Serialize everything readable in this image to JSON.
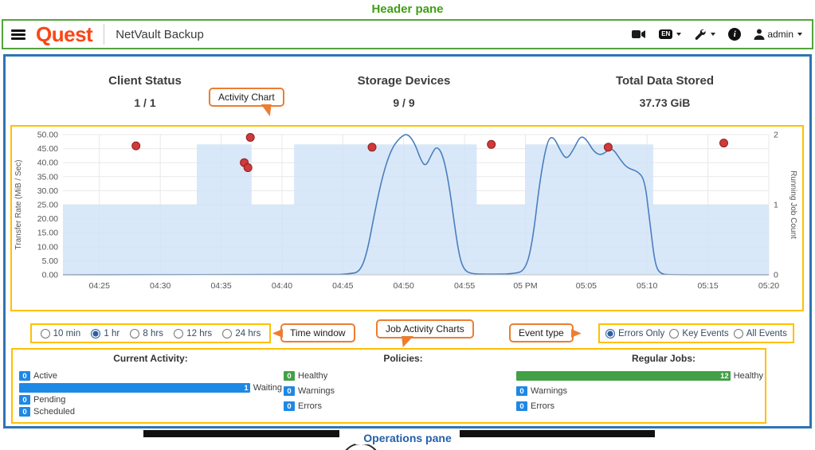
{
  "annotations": {
    "header_pane_label": "Header pane",
    "operations_pane_label": "Operations pane",
    "callouts": {
      "activity_chart": "Activity Chart",
      "time_window": "Time window",
      "job_activity_charts": "Job Activity Charts",
      "event_type": "Event type"
    },
    "colors": {
      "green_border": "#54a33c",
      "blue_border": "#2f74b5",
      "gold_border": "#ffc000",
      "orange_callout": "#ed7d31"
    }
  },
  "header": {
    "logo_text": "Quest",
    "logo_color": "#fa4616",
    "app_title": "NetVault Backup",
    "language_label": "EN",
    "user_label": "admin",
    "icons": [
      "menu-icon",
      "video-camera-icon",
      "language-bubble-icon",
      "tools-icon",
      "info-icon",
      "user-icon"
    ]
  },
  "stats": {
    "items": [
      {
        "title": "Client Status",
        "value": "1 / 1"
      },
      {
        "title": "Storage Devices",
        "value": "9 / 9"
      },
      {
        "title": "Total Data Stored",
        "value": "37.73 GiB"
      }
    ]
  },
  "controls": {
    "time_window": {
      "options": [
        "10 min",
        "1 hr",
        "8 hrs",
        "12 hrs",
        "24 hrs"
      ],
      "selected": "1 hr"
    },
    "event_type": {
      "options": [
        "Errors Only",
        "Key Events",
        "All Events"
      ],
      "selected": "Errors Only"
    }
  },
  "chart_data": {
    "type": "line",
    "title": "Activity Chart",
    "x_ticks": [
      "04:25",
      "04:30",
      "04:35",
      "04:40",
      "04:45",
      "04:50",
      "04:55",
      "05 PM",
      "05:05",
      "05:10",
      "05:15",
      "05:20"
    ],
    "x_tick_minutes": [
      25,
      30,
      35,
      40,
      45,
      50,
      55,
      60,
      65,
      70,
      75,
      80
    ],
    "x_range": [
      22,
      80
    ],
    "y_left_label": "Transfer Rate (MiB / Sec)",
    "y_left_range": [
      0,
      50
    ],
    "y_left_ticks": [
      "0.00",
      "5.00",
      "10.00",
      "15.00",
      "20.00",
      "25.00",
      "30.00",
      "35.00",
      "40.00",
      "45.00",
      "50.00"
    ],
    "y_right_label": "Running Job Count",
    "y_right_range": [
      0,
      2
    ],
    "y_right_ticks": [
      "0",
      "1",
      "2"
    ],
    "grid": true,
    "legend": "none",
    "series": [
      {
        "name": "Transfer Rate",
        "kind": "line",
        "color": "#4a7fbf",
        "points": [
          [
            22,
            0
          ],
          [
            44,
            0
          ],
          [
            45.5,
            0.3
          ],
          [
            46.4,
            1
          ],
          [
            47,
            8
          ],
          [
            47.6,
            22
          ],
          [
            48.3,
            36
          ],
          [
            49,
            45
          ],
          [
            49.7,
            49
          ],
          [
            50.3,
            50.5
          ],
          [
            50.9,
            47
          ],
          [
            51.4,
            41
          ],
          [
            51.8,
            38.5
          ],
          [
            52.3,
            43
          ],
          [
            52.7,
            46
          ],
          [
            53.2,
            43
          ],
          [
            53.7,
            33
          ],
          [
            54.2,
            17
          ],
          [
            54.6,
            6
          ],
          [
            55,
            1.5
          ],
          [
            55.6,
            0.3
          ],
          [
            57,
            0.2
          ],
          [
            59,
            0.3
          ],
          [
            60,
            1.5
          ],
          [
            60.6,
            12
          ],
          [
            61.2,
            34
          ],
          [
            61.8,
            48
          ],
          [
            62.3,
            49.5
          ],
          [
            62.9,
            44
          ],
          [
            63.4,
            41
          ],
          [
            64,
            45
          ],
          [
            64.5,
            49.5
          ],
          [
            65,
            48.5
          ],
          [
            65.6,
            44
          ],
          [
            66.2,
            42.5
          ],
          [
            66.8,
            44.5
          ],
          [
            67.2,
            45
          ],
          [
            67.8,
            41
          ],
          [
            68.4,
            38
          ],
          [
            69.2,
            37
          ],
          [
            69.8,
            34
          ],
          [
            70.2,
            20
          ],
          [
            70.6,
            5
          ],
          [
            71,
            0.3
          ],
          [
            72,
            0
          ],
          [
            80,
            0
          ]
        ]
      },
      {
        "name": "Running Job Count",
        "kind": "stepped-area",
        "color": "#cfe2f6",
        "segments": [
          [
            22,
            33,
            1
          ],
          [
            33,
            37.5,
            2
          ],
          [
            37.5,
            41,
            1
          ],
          [
            41,
            56,
            2
          ],
          [
            56,
            60,
            1
          ],
          [
            60,
            70.5,
            2
          ],
          [
            70.5,
            80,
            1
          ]
        ]
      },
      {
        "name": "Error Events",
        "kind": "scatter",
        "color": "#cf3a3a",
        "points": [
          [
            28,
            46
          ],
          [
            36.9,
            40
          ],
          [
            37.2,
            38.2
          ],
          [
            37.4,
            49
          ],
          [
            47.4,
            45.5
          ],
          [
            57.2,
            46.5
          ],
          [
            66.8,
            45.5
          ],
          [
            76.3,
            47
          ]
        ]
      }
    ]
  },
  "activity_summary": {
    "groups": [
      {
        "title": "Current Activity:",
        "rows": [
          {
            "label": "Active",
            "value": 0,
            "color": "#1e88e5"
          },
          {
            "label": "Waiting",
            "value": 1,
            "color": "#1e88e5"
          },
          {
            "label": "Pending",
            "value": 0,
            "color": "#1e88e5"
          },
          {
            "label": "Scheduled",
            "value": 0,
            "color": "#1e88e5"
          }
        ]
      },
      {
        "title": "Policies:",
        "rows": [
          {
            "label": "Healthy",
            "value": 0,
            "color": "#43a047"
          },
          {
            "label": "Warnings",
            "value": 0,
            "color": "#1e88e5"
          },
          {
            "label": "Errors",
            "value": 0,
            "color": "#1e88e5"
          }
        ]
      },
      {
        "title": "Regular Jobs:",
        "rows": [
          {
            "label": "Healthy",
            "value": 12,
            "color": "#43a047"
          },
          {
            "label": "Warnings",
            "value": 0,
            "color": "#1e88e5"
          },
          {
            "label": "Errors",
            "value": 0,
            "color": "#1e88e5"
          }
        ]
      }
    ]
  }
}
